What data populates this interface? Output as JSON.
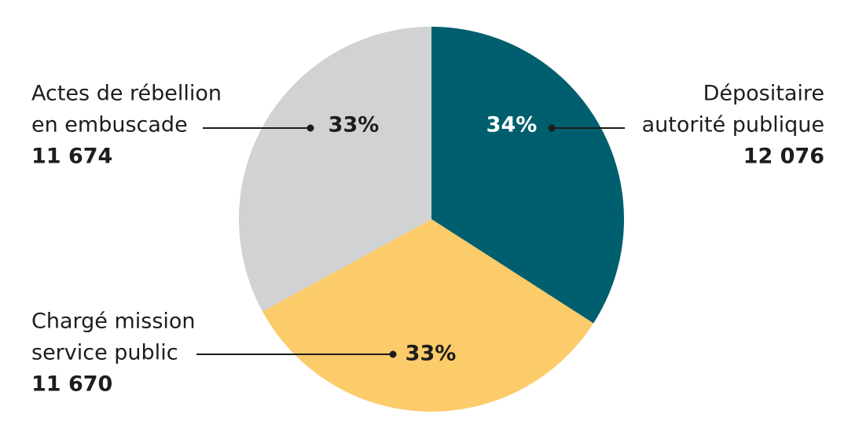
{
  "chart_data": {
    "type": "pie",
    "categories": [
      [
        "Dépositaire",
        "autorité publique"
      ],
      [
        "Chargé mission",
        "service public"
      ],
      [
        "Actes de rébellion",
        "en embuscade"
      ]
    ],
    "values": [
      12076,
      11670,
      11674
    ],
    "value_labels": [
      "12 076",
      "11 670",
      "11 674"
    ],
    "percentages": [
      34,
      33,
      33
    ],
    "percentage_labels": [
      "34%",
      "33%",
      "33%"
    ],
    "colors": [
      "#005f6e",
      "#fccb6a",
      "#d1d2d4"
    ],
    "percentage_label_colors": [
      "#ffffff",
      "#1d1d1b",
      "#1d1d1b"
    ]
  }
}
